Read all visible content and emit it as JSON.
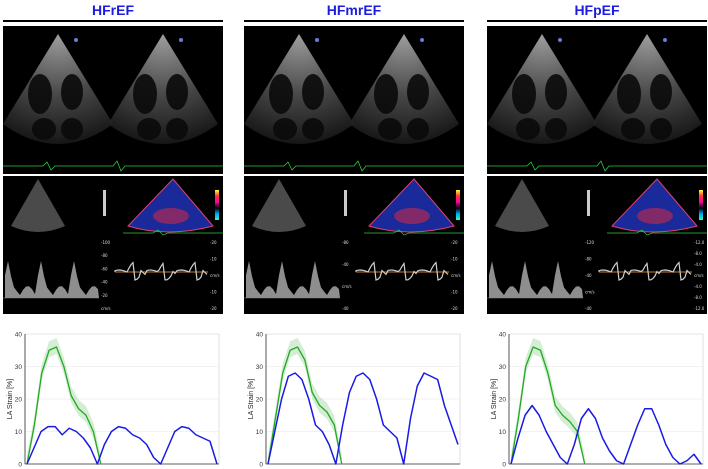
{
  "panels": [
    {
      "title": "HFrEF",
      "doppler_scale_left": [
        "-100",
        "-80",
        "-60",
        "-40",
        "-20",
        "cm/s"
      ],
      "doppler_scale_right": [
        "-20",
        "-10",
        "cm/s",
        "-10",
        "-20"
      ],
      "strain": {
        "ylabel": "LA Strain [%]",
        "yticks": [
          "0",
          "10",
          "20",
          "30",
          "40"
        ]
      }
    },
    {
      "title": "HFmrEF",
      "doppler_scale_left": [
        "-80",
        "-40",
        "cm/s",
        "-40"
      ],
      "doppler_scale_right": [
        "-20",
        "-10",
        "cm/s",
        "-10",
        "-20"
      ],
      "strain": {
        "ylabel": "LA Strain [%]",
        "yticks": [
          "0",
          "10",
          "20",
          "30",
          "40"
        ]
      }
    },
    {
      "title": "HFpEF",
      "doppler_scale_left": [
        "-120",
        "-80",
        "-40",
        "cm/s",
        "-40"
      ],
      "doppler_scale_right": [
        "-12.0",
        "-8.0",
        "-4.0",
        "cm/s",
        "-4.0",
        "-8.0",
        "-12.0"
      ],
      "strain": {
        "ylabel": "LA Strain [%]",
        "yticks": [
          "0",
          "10",
          "20",
          "30",
          "40"
        ]
      }
    }
  ],
  "chart_data": [
    {
      "type": "line",
      "title": "",
      "ylabel": "LA Strain [%]",
      "ylim": [
        0,
        40
      ],
      "series": [
        {
          "color": "#22aa22",
          "values": [
            0,
            12,
            28,
            35,
            36,
            30,
            21,
            17,
            15,
            10,
            0
          ]
        },
        {
          "color": "#1a1ae6",
          "values": [
            0,
            5,
            10,
            11.5,
            11.5,
            9,
            11,
            10,
            8,
            5,
            0,
            6,
            10,
            11.5,
            11,
            9,
            8,
            6,
            2,
            0,
            5,
            10,
            11.5,
            11,
            9,
            8,
            7,
            0
          ]
        }
      ]
    },
    {
      "type": "line",
      "title": "",
      "ylabel": "LA Strain [%]",
      "ylim": [
        0,
        40
      ],
      "series": [
        {
          "color": "#22aa22",
          "values": [
            0,
            14,
            28,
            35,
            36,
            32,
            22,
            18,
            16,
            12,
            0
          ]
        },
        {
          "color": "#1a1ae6",
          "values": [
            0,
            10,
            20,
            27,
            28,
            26,
            20,
            12,
            10,
            6,
            0,
            12,
            22,
            27,
            28,
            26,
            20,
            12,
            10,
            8,
            0,
            14,
            24,
            28,
            27,
            26,
            18,
            12,
            6
          ]
        }
      ]
    },
    {
      "type": "line",
      "title": "",
      "ylabel": "LA Strain [%]",
      "ylim": [
        0,
        40
      ],
      "series": [
        {
          "color": "#22aa22",
          "values": [
            0,
            14,
            30,
            36,
            35,
            28,
            18,
            15,
            13,
            10,
            0
          ]
        },
        {
          "color": "#1a1ae6",
          "values": [
            0,
            8,
            15,
            18,
            15,
            10,
            6,
            2,
            0,
            6,
            14,
            17,
            14,
            8,
            4,
            1,
            0,
            6,
            12,
            17,
            17,
            12,
            6,
            2,
            0,
            1,
            3,
            0
          ]
        }
      ]
    }
  ]
}
